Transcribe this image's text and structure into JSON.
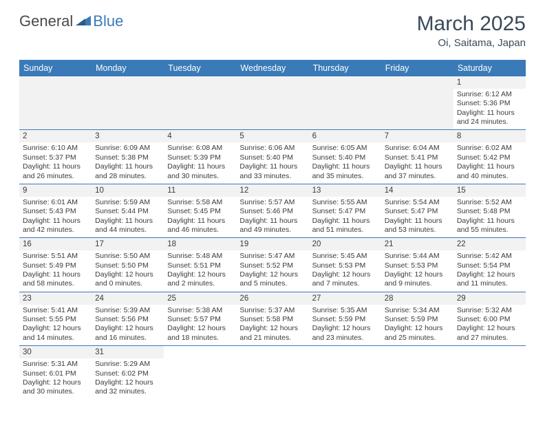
{
  "logo": {
    "text_general": "General",
    "text_blue": "Blue",
    "triangle_color": "#3a7ab8"
  },
  "header": {
    "month_title": "March 2025",
    "location": "Oi, Saitama, Japan"
  },
  "colors": {
    "header_bg": "#3a7ab8",
    "header_text": "#ffffff",
    "daynum_bg": "#f2f2f2",
    "border": "#3a7ab8",
    "body_text": "#3a3a3a",
    "title_text": "#3a4a5a"
  },
  "day_names": [
    "Sunday",
    "Monday",
    "Tuesday",
    "Wednesday",
    "Thursday",
    "Friday",
    "Saturday"
  ],
  "weeks": [
    [
      {
        "blank": true
      },
      {
        "blank": true
      },
      {
        "blank": true
      },
      {
        "blank": true
      },
      {
        "blank": true
      },
      {
        "blank": true
      },
      {
        "day": "1",
        "sunrise": "Sunrise: 6:12 AM",
        "sunset": "Sunset: 5:36 PM",
        "daylight1": "Daylight: 11 hours",
        "daylight2": "and 24 minutes."
      }
    ],
    [
      {
        "day": "2",
        "sunrise": "Sunrise: 6:10 AM",
        "sunset": "Sunset: 5:37 PM",
        "daylight1": "Daylight: 11 hours",
        "daylight2": "and 26 minutes."
      },
      {
        "day": "3",
        "sunrise": "Sunrise: 6:09 AM",
        "sunset": "Sunset: 5:38 PM",
        "daylight1": "Daylight: 11 hours",
        "daylight2": "and 28 minutes."
      },
      {
        "day": "4",
        "sunrise": "Sunrise: 6:08 AM",
        "sunset": "Sunset: 5:39 PM",
        "daylight1": "Daylight: 11 hours",
        "daylight2": "and 30 minutes."
      },
      {
        "day": "5",
        "sunrise": "Sunrise: 6:06 AM",
        "sunset": "Sunset: 5:40 PM",
        "daylight1": "Daylight: 11 hours",
        "daylight2": "and 33 minutes."
      },
      {
        "day": "6",
        "sunrise": "Sunrise: 6:05 AM",
        "sunset": "Sunset: 5:40 PM",
        "daylight1": "Daylight: 11 hours",
        "daylight2": "and 35 minutes."
      },
      {
        "day": "7",
        "sunrise": "Sunrise: 6:04 AM",
        "sunset": "Sunset: 5:41 PM",
        "daylight1": "Daylight: 11 hours",
        "daylight2": "and 37 minutes."
      },
      {
        "day": "8",
        "sunrise": "Sunrise: 6:02 AM",
        "sunset": "Sunset: 5:42 PM",
        "daylight1": "Daylight: 11 hours",
        "daylight2": "and 40 minutes."
      }
    ],
    [
      {
        "day": "9",
        "sunrise": "Sunrise: 6:01 AM",
        "sunset": "Sunset: 5:43 PM",
        "daylight1": "Daylight: 11 hours",
        "daylight2": "and 42 minutes."
      },
      {
        "day": "10",
        "sunrise": "Sunrise: 5:59 AM",
        "sunset": "Sunset: 5:44 PM",
        "daylight1": "Daylight: 11 hours",
        "daylight2": "and 44 minutes."
      },
      {
        "day": "11",
        "sunrise": "Sunrise: 5:58 AM",
        "sunset": "Sunset: 5:45 PM",
        "daylight1": "Daylight: 11 hours",
        "daylight2": "and 46 minutes."
      },
      {
        "day": "12",
        "sunrise": "Sunrise: 5:57 AM",
        "sunset": "Sunset: 5:46 PM",
        "daylight1": "Daylight: 11 hours",
        "daylight2": "and 49 minutes."
      },
      {
        "day": "13",
        "sunrise": "Sunrise: 5:55 AM",
        "sunset": "Sunset: 5:47 PM",
        "daylight1": "Daylight: 11 hours",
        "daylight2": "and 51 minutes."
      },
      {
        "day": "14",
        "sunrise": "Sunrise: 5:54 AM",
        "sunset": "Sunset: 5:47 PM",
        "daylight1": "Daylight: 11 hours",
        "daylight2": "and 53 minutes."
      },
      {
        "day": "15",
        "sunrise": "Sunrise: 5:52 AM",
        "sunset": "Sunset: 5:48 PM",
        "daylight1": "Daylight: 11 hours",
        "daylight2": "and 55 minutes."
      }
    ],
    [
      {
        "day": "16",
        "sunrise": "Sunrise: 5:51 AM",
        "sunset": "Sunset: 5:49 PM",
        "daylight1": "Daylight: 11 hours",
        "daylight2": "and 58 minutes."
      },
      {
        "day": "17",
        "sunrise": "Sunrise: 5:50 AM",
        "sunset": "Sunset: 5:50 PM",
        "daylight1": "Daylight: 12 hours",
        "daylight2": "and 0 minutes."
      },
      {
        "day": "18",
        "sunrise": "Sunrise: 5:48 AM",
        "sunset": "Sunset: 5:51 PM",
        "daylight1": "Daylight: 12 hours",
        "daylight2": "and 2 minutes."
      },
      {
        "day": "19",
        "sunrise": "Sunrise: 5:47 AM",
        "sunset": "Sunset: 5:52 PM",
        "daylight1": "Daylight: 12 hours",
        "daylight2": "and 5 minutes."
      },
      {
        "day": "20",
        "sunrise": "Sunrise: 5:45 AM",
        "sunset": "Sunset: 5:53 PM",
        "daylight1": "Daylight: 12 hours",
        "daylight2": "and 7 minutes."
      },
      {
        "day": "21",
        "sunrise": "Sunrise: 5:44 AM",
        "sunset": "Sunset: 5:53 PM",
        "daylight1": "Daylight: 12 hours",
        "daylight2": "and 9 minutes."
      },
      {
        "day": "22",
        "sunrise": "Sunrise: 5:42 AM",
        "sunset": "Sunset: 5:54 PM",
        "daylight1": "Daylight: 12 hours",
        "daylight2": "and 11 minutes."
      }
    ],
    [
      {
        "day": "23",
        "sunrise": "Sunrise: 5:41 AM",
        "sunset": "Sunset: 5:55 PM",
        "daylight1": "Daylight: 12 hours",
        "daylight2": "and 14 minutes."
      },
      {
        "day": "24",
        "sunrise": "Sunrise: 5:39 AM",
        "sunset": "Sunset: 5:56 PM",
        "daylight1": "Daylight: 12 hours",
        "daylight2": "and 16 minutes."
      },
      {
        "day": "25",
        "sunrise": "Sunrise: 5:38 AM",
        "sunset": "Sunset: 5:57 PM",
        "daylight1": "Daylight: 12 hours",
        "daylight2": "and 18 minutes."
      },
      {
        "day": "26",
        "sunrise": "Sunrise: 5:37 AM",
        "sunset": "Sunset: 5:58 PM",
        "daylight1": "Daylight: 12 hours",
        "daylight2": "and 21 minutes."
      },
      {
        "day": "27",
        "sunrise": "Sunrise: 5:35 AM",
        "sunset": "Sunset: 5:59 PM",
        "daylight1": "Daylight: 12 hours",
        "daylight2": "and 23 minutes."
      },
      {
        "day": "28",
        "sunrise": "Sunrise: 5:34 AM",
        "sunset": "Sunset: 5:59 PM",
        "daylight1": "Daylight: 12 hours",
        "daylight2": "and 25 minutes."
      },
      {
        "day": "29",
        "sunrise": "Sunrise: 5:32 AM",
        "sunset": "Sunset: 6:00 PM",
        "daylight1": "Daylight: 12 hours",
        "daylight2": "and 27 minutes."
      }
    ],
    [
      {
        "day": "30",
        "sunrise": "Sunrise: 5:31 AM",
        "sunset": "Sunset: 6:01 PM",
        "daylight1": "Daylight: 12 hours",
        "daylight2": "and 30 minutes."
      },
      {
        "day": "31",
        "sunrise": "Sunrise: 5:29 AM",
        "sunset": "Sunset: 6:02 PM",
        "daylight1": "Daylight: 12 hours",
        "daylight2": "and 32 minutes."
      },
      {
        "blank": true
      },
      {
        "blank": true
      },
      {
        "blank": true
      },
      {
        "blank": true
      },
      {
        "blank": true
      }
    ]
  ]
}
